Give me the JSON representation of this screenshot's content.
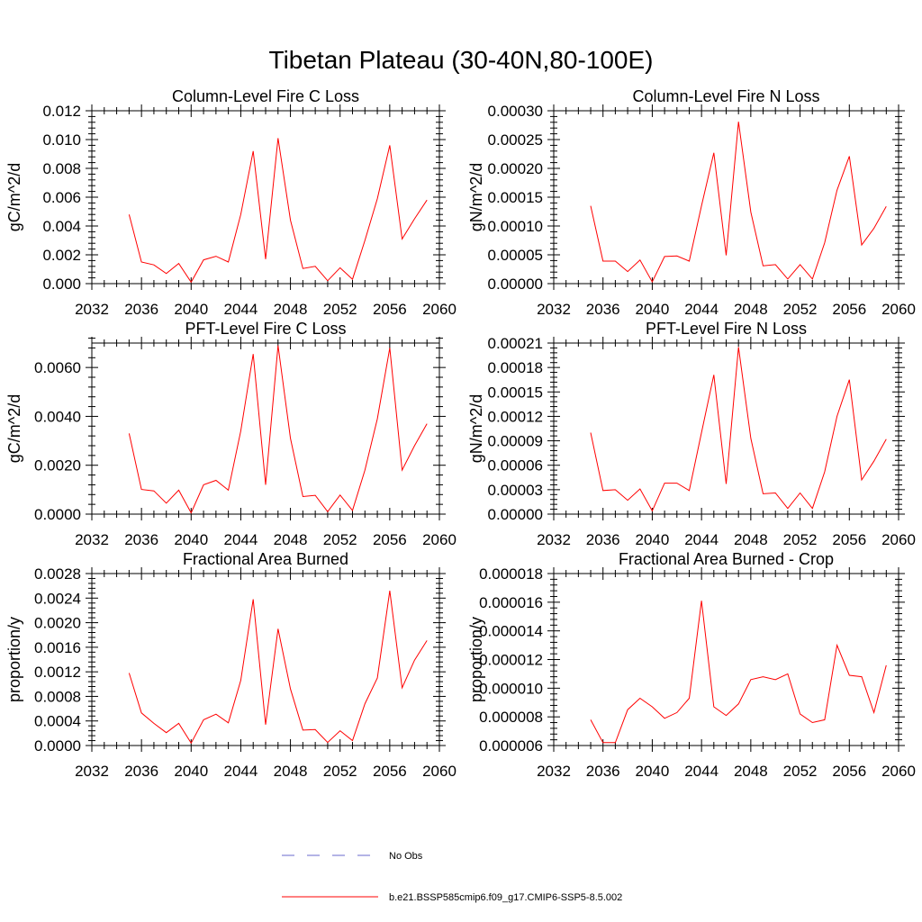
{
  "figure": {
    "title": "Tibetan Plateau (30-40N,80-100E)"
  },
  "legend": {
    "position": "bottom-center",
    "items": [
      {
        "label": "No Obs",
        "color": "#6a6acd",
        "style": "dashed"
      },
      {
        "label": "b.e21.BSSP585cmip6.f09_g17.CMIP6-SSP5-8.5.002",
        "color": "#ff0000",
        "style": "solid"
      }
    ]
  },
  "chart_data": [
    {
      "type": "line",
      "title": "Column-Level Fire C Loss",
      "ylabel": "gC/m^2/d",
      "xlim": [
        2032,
        2060
      ],
      "ylim": [
        0,
        0.012
      ],
      "xticks": [
        "2032",
        "2036",
        "2040",
        "2044",
        "2048",
        "2052",
        "2056",
        "2060"
      ],
      "yticks": [
        "0.000",
        "0.002",
        "0.004",
        "0.006",
        "0.008",
        "0.010",
        "0.012"
      ],
      "color": "#ff0000",
      "x": [
        2035,
        2036,
        2037,
        2038,
        2039,
        2040,
        2041,
        2042,
        2043,
        2044,
        2045,
        2046,
        2047,
        2048,
        2049,
        2050,
        2051,
        2052,
        2053,
        2054,
        2055,
        2056,
        2057,
        2058,
        2059
      ],
      "y": [
        0.0048,
        0.0015,
        0.0013,
        0.0007,
        0.0014,
        0.0001,
        0.00165,
        0.0019,
        0.0015,
        0.0048,
        0.0092,
        0.0017,
        0.0101,
        0.0044,
        0.00105,
        0.0012,
        0.0002,
        0.0011,
        0.0003,
        0.003,
        0.0059,
        0.0096,
        0.0031,
        0.0045,
        0.0058
      ]
    },
    {
      "type": "line",
      "title": "Column-Level Fire N Loss",
      "ylabel": "gN/m^2/d",
      "xlim": [
        2032,
        2060
      ],
      "ylim": [
        0,
        0.0003
      ],
      "xticks": [
        "2032",
        "2036",
        "2040",
        "2044",
        "2048",
        "2052",
        "2056",
        "2060"
      ],
      "yticks": [
        "0.00000",
        "0.00005",
        "0.00010",
        "0.00015",
        "0.00020",
        "0.00025",
        "0.00030"
      ],
      "color": "#ff0000",
      "x": [
        2035,
        2036,
        2037,
        2038,
        2039,
        2040,
        2041,
        2042,
        2043,
        2044,
        2045,
        2046,
        2047,
        2048,
        2049,
        2050,
        2051,
        2052,
        2053,
        2054,
        2055,
        2056,
        2057,
        2058,
        2059
      ],
      "y": [
        0.000135,
        3.9e-05,
        3.9e-05,
        2.1e-05,
        4.1e-05,
        3e-06,
        4.7e-05,
        4.8e-05,
        3.9e-05,
        0.000135,
        0.000227,
        4.9e-05,
        0.000281,
        0.000124,
        3.1e-05,
        3.3e-05,
        8e-06,
        3.3e-05,
        8e-06,
        7.1e-05,
        0.000162,
        0.000221,
        6.7e-05,
        9.6e-05,
        0.000134
      ]
    },
    {
      "type": "line",
      "title": "PFT-Level Fire C Loss",
      "ylabel": "gC/m^2/d",
      "xlim": [
        2032,
        2060
      ],
      "ylim": [
        0,
        0.007
      ],
      "xticks": [
        "2032",
        "2036",
        "2040",
        "2044",
        "2048",
        "2052",
        "2056",
        "2060"
      ],
      "yticks": [
        "0.0000",
        "0.0020",
        "0.0040",
        "0.0060"
      ],
      "yticks_values": [
        0,
        0.002,
        0.004,
        0.006
      ],
      "color": "#ff0000",
      "x": [
        2035,
        2036,
        2037,
        2038,
        2039,
        2040,
        2041,
        2042,
        2043,
        2044,
        2045,
        2046,
        2047,
        2048,
        2049,
        2050,
        2051,
        2052,
        2053,
        2054,
        2055,
        2056,
        2057,
        2058,
        2059
      ],
      "y": [
        0.0033,
        0.00101,
        0.00095,
        0.00045,
        0.00098,
        5e-05,
        0.0012,
        0.00138,
        0.00098,
        0.0034,
        0.00655,
        0.0012,
        0.0069,
        0.0031,
        0.00072,
        0.00077,
        0.0001,
        0.00078,
        0.00015,
        0.0018,
        0.0039,
        0.0068,
        0.0018,
        0.0028,
        0.0037
      ]
    },
    {
      "type": "line",
      "title": "PFT-Level Fire N Loss",
      "ylabel": "gN/m^2/d",
      "xlim": [
        2032,
        2060
      ],
      "ylim": [
        0,
        0.00021
      ],
      "xticks": [
        "2032",
        "2036",
        "2040",
        "2044",
        "2048",
        "2052",
        "2056",
        "2060"
      ],
      "yticks": [
        "0.00000",
        "0.00003",
        "0.00006",
        "0.00009",
        "0.00012",
        "0.00015",
        "0.00018",
        "0.00021"
      ],
      "color": "#ff0000",
      "x": [
        2035,
        2036,
        2037,
        2038,
        2039,
        2040,
        2041,
        2042,
        2043,
        2044,
        2045,
        2046,
        2047,
        2048,
        2049,
        2050,
        2051,
        2052,
        2053,
        2054,
        2055,
        2056,
        2057,
        2058,
        2059
      ],
      "y": [
        0.0001,
        2.9e-05,
        3e-05,
        1.7e-05,
        3.1e-05,
        4e-06,
        3.8e-05,
        3.8e-05,
        2.9e-05,
        0.0001,
        0.000171,
        3.7e-05,
        0.000205,
        9.3e-05,
        2.5e-05,
        2.6e-05,
        7e-06,
        2.6e-05,
        7e-06,
        5.2e-05,
        0.00012,
        0.000165,
        4.2e-05,
        6.5e-05,
        9.2e-05
      ]
    },
    {
      "type": "line",
      "title": "Fractional Area Burned",
      "ylabel": "proportion/y",
      "xlim": [
        2032,
        2060
      ],
      "ylim": [
        0,
        0.0028
      ],
      "xticks": [
        "2032",
        "2036",
        "2040",
        "2044",
        "2048",
        "2052",
        "2056",
        "2060"
      ],
      "yticks": [
        "0.0000",
        "0.0004",
        "0.0008",
        "0.0012",
        "0.0016",
        "0.0020",
        "0.0024",
        "0.0028"
      ],
      "color": "#ff0000",
      "x": [
        2035,
        2036,
        2037,
        2038,
        2039,
        2040,
        2041,
        2042,
        2043,
        2044,
        2045,
        2046,
        2047,
        2048,
        2049,
        2050,
        2051,
        2052,
        2053,
        2054,
        2055,
        2056,
        2057,
        2058,
        2059
      ],
      "y": [
        0.00118,
        0.00053,
        0.00036,
        0.00021,
        0.00036,
        4e-05,
        0.00042,
        0.00051,
        0.00037,
        0.00106,
        0.00238,
        0.00034,
        0.0019,
        0.00092,
        0.00025,
        0.00026,
        5e-05,
        0.00024,
        8e-05,
        0.00068,
        0.0011,
        0.00252,
        0.00094,
        0.00139,
        0.00171
      ]
    },
    {
      "type": "line",
      "title": "Fractional Area Burned - Crop",
      "ylabel": "proportion/y",
      "xlim": [
        2032,
        2060
      ],
      "ylim": [
        6e-06,
        1.8e-05
      ],
      "xticks": [
        "2032",
        "2036",
        "2040",
        "2044",
        "2048",
        "2052",
        "2056",
        "2060"
      ],
      "yticks": [
        "0.000006",
        "0.000008",
        "0.000010",
        "0.000012",
        "0.000014",
        "0.000016",
        "0.000018"
      ],
      "color": "#ff0000",
      "x": [
        2035,
        2036,
        2037,
        2038,
        2039,
        2040,
        2041,
        2042,
        2043,
        2044,
        2045,
        2046,
        2047,
        2048,
        2049,
        2050,
        2051,
        2052,
        2053,
        2054,
        2055,
        2056,
        2057,
        2058,
        2059
      ],
      "y": [
        7.8e-06,
        6.2e-06,
        6.2e-06,
        8.5e-06,
        9.3e-06,
        8.7e-06,
        7.9e-06,
        8.3e-06,
        9.3e-06,
        1.61e-05,
        8.7e-06,
        8.1e-06,
        8.9e-06,
        1.06e-05,
        1.08e-05,
        1.06e-05,
        1.1e-05,
        8.2e-06,
        7.6e-06,
        7.8e-06,
        1.3e-05,
        1.09e-05,
        1.08e-05,
        8.3e-06,
        1.16e-05
      ]
    }
  ]
}
